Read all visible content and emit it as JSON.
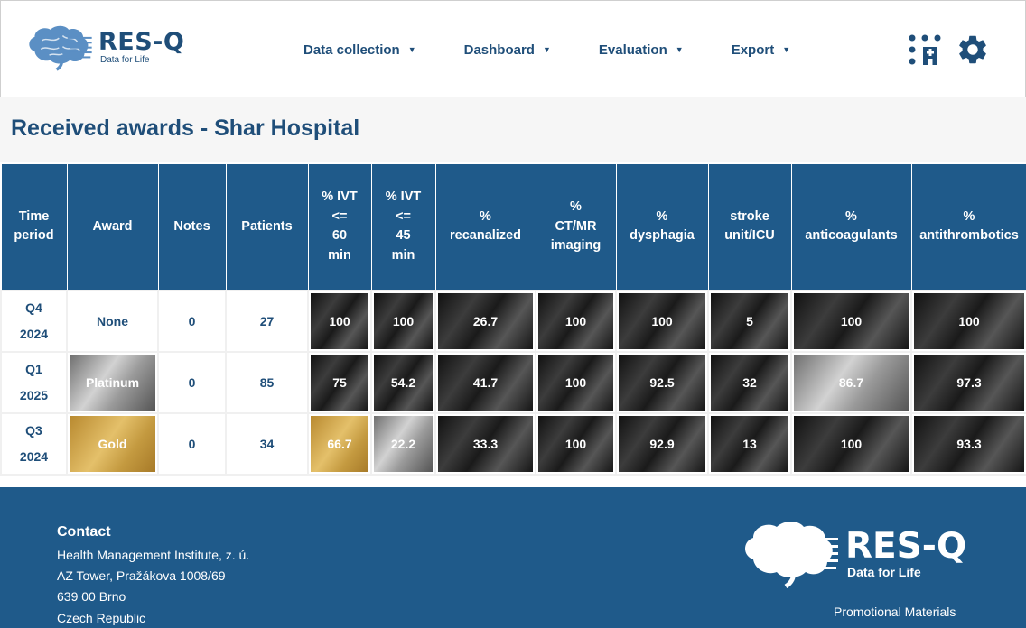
{
  "brand": {
    "name": "RES-Q",
    "tagline": "Data for Life"
  },
  "nav": [
    {
      "label": "Data collection"
    },
    {
      "label": "Dashboard"
    },
    {
      "label": "Evaluation"
    },
    {
      "label": "Export"
    }
  ],
  "icons": {
    "apps": "hospital-apps-icon",
    "settings": "gear-icon",
    "caret": "caret-down-icon"
  },
  "page_title": "Received awards - Shar Hospital",
  "table": {
    "headers": [
      [
        "Time",
        "period"
      ],
      [
        "Award"
      ],
      [
        "Notes"
      ],
      [
        "Patients"
      ],
      [
        "% IVT",
        "<=",
        "60",
        "min"
      ],
      [
        "% IVT",
        "<=",
        "45",
        "min"
      ],
      [
        "%",
        "recanalized"
      ],
      [
        "%",
        "CT/MR",
        "imaging"
      ],
      [
        "%",
        "dysphagia"
      ],
      [
        "stroke",
        "unit/ICU"
      ],
      [
        "%",
        "anticoagulants"
      ],
      [
        "%",
        "antithrombotics"
      ]
    ],
    "rows": [
      {
        "period": [
          "Q4",
          "2024"
        ],
        "award": "None",
        "award_style": "plain",
        "notes": "0",
        "patients": "27",
        "metrics": [
          {
            "value": "100",
            "style": "black"
          },
          {
            "value": "100",
            "style": "black"
          },
          {
            "value": "26.7",
            "style": "black"
          },
          {
            "value": "100",
            "style": "black"
          },
          {
            "value": "100",
            "style": "black"
          },
          {
            "value": "5",
            "style": "black"
          },
          {
            "value": "100",
            "style": "black"
          },
          {
            "value": "100",
            "style": "black"
          }
        ]
      },
      {
        "period": [
          "Q1",
          "2025"
        ],
        "award": "Platinum",
        "award_style": "silver",
        "notes": "0",
        "patients": "85",
        "metrics": [
          {
            "value": "75",
            "style": "black"
          },
          {
            "value": "54.2",
            "style": "black"
          },
          {
            "value": "41.7",
            "style": "black"
          },
          {
            "value": "100",
            "style": "black"
          },
          {
            "value": "92.5",
            "style": "black"
          },
          {
            "value": "32",
            "style": "black"
          },
          {
            "value": "86.7",
            "style": "silver"
          },
          {
            "value": "97.3",
            "style": "black"
          }
        ]
      },
      {
        "period": [
          "Q3",
          "2024"
        ],
        "award": "Gold",
        "award_style": "gold",
        "notes": "0",
        "patients": "34",
        "metrics": [
          {
            "value": "66.7",
            "style": "gold"
          },
          {
            "value": "22.2",
            "style": "silver"
          },
          {
            "value": "33.3",
            "style": "black"
          },
          {
            "value": "100",
            "style": "black"
          },
          {
            "value": "92.9",
            "style": "black"
          },
          {
            "value": "13",
            "style": "black"
          },
          {
            "value": "100",
            "style": "black"
          },
          {
            "value": "93.3",
            "style": "black"
          }
        ]
      }
    ]
  },
  "footer": {
    "contact_title": "Contact",
    "contact_lines": [
      "Health Management Institute, z. ú.",
      "AZ Tower, Pražákova 1008/69",
      "639 00 Brno",
      "Czech Republic"
    ],
    "promo_link": "Promotional Materials"
  },
  "colors": {
    "primary": "#1f5a8a",
    "text": "#1f4e79",
    "gold": "#c9a04a",
    "platinum": "#a8a8a8",
    "black_award": "#2a2a2a"
  }
}
